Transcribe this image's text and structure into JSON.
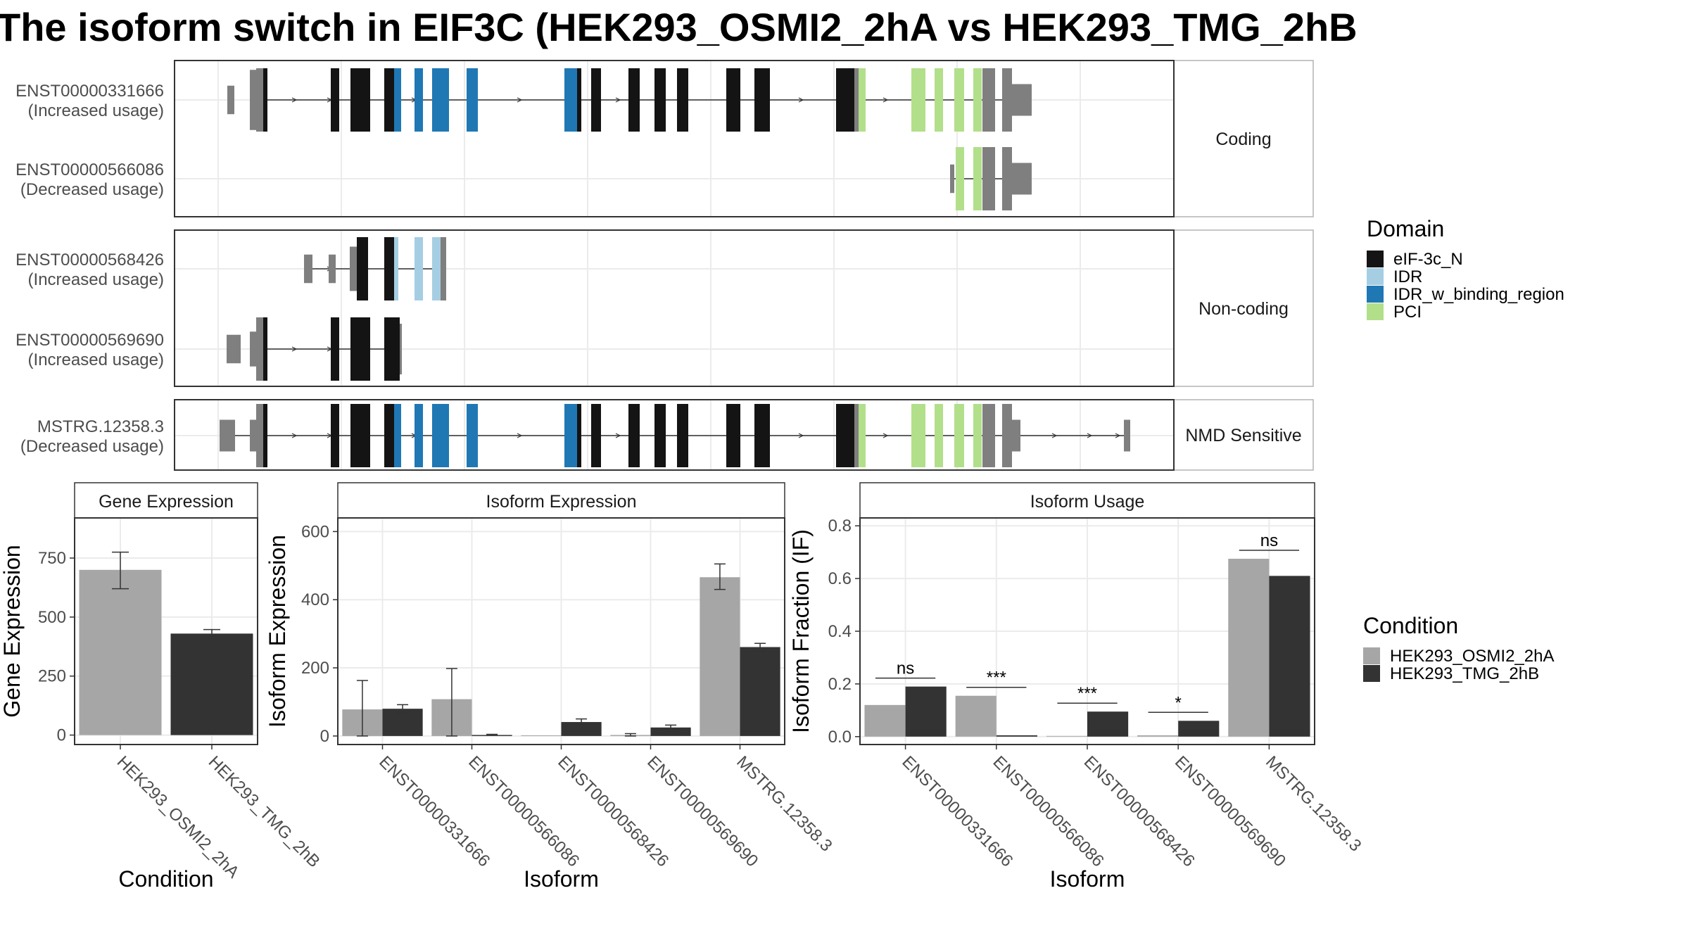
{
  "title": "The isoform switch in EIF3C (HEK293_OSMI2_2hA vs HEK293_TMG_2hB",
  "colors": {
    "eIF-3c_N": "#141414",
    "IDR": "#a6cee3",
    "IDR_w_binding_region": "#1f78b4",
    "PCI": "#b2df8a",
    "exon": "#7f7f7f",
    "cond1": "#a6a6a6",
    "cond2": "#333333"
  },
  "structure": {
    "groups": [
      {
        "label": "Coding",
        "rows": [
          {
            "id": "ENST00000331666",
            "note": "(Increased usage)"
          },
          {
            "id": "ENST00000566086",
            "note": "(Decreased usage)"
          }
        ]
      },
      {
        "label": "Non-coding",
        "rows": [
          {
            "id": "ENST00000568426",
            "note": "(Increased usage)"
          },
          {
            "id": "ENST00000569690",
            "note": "(Increased usage)"
          }
        ]
      },
      {
        "label": "NMD Sensitive",
        "rows": [
          {
            "id": "MSTRG.12358.3",
            "note": "(Decreased usage)"
          }
        ]
      }
    ]
  },
  "legend_domain": {
    "title": "Domain",
    "items": [
      {
        "label": "eIF-3c_N",
        "color": "#141414"
      },
      {
        "label": "IDR",
        "color": "#a6cee3"
      },
      {
        "label": "IDR_w_binding_region",
        "color": "#1f78b4"
      },
      {
        "label": "PCI",
        "color": "#b2df8a"
      }
    ]
  },
  "legend_condition": {
    "title": "Condition",
    "items": [
      {
        "label": "HEK293_OSMI2_2hA",
        "color": "#a6a6a6"
      },
      {
        "label": "HEK293_TMG_2hB",
        "color": "#333333"
      }
    ]
  },
  "chart_data": [
    {
      "type": "bar",
      "title": "Gene Expression",
      "xlabel": "Condition",
      "ylabel": "Gene Expression",
      "categories": [
        "HEK293_OSMI2_2hA",
        "HEK293_TMG_2hB"
      ],
      "values": [
        700,
        430
      ],
      "error_low": [
        620,
        415
      ],
      "error_high": [
        775,
        447
      ],
      "ylim": [
        -40,
        920
      ],
      "yticks": [
        0,
        250,
        500,
        750
      ]
    },
    {
      "type": "bar",
      "title": "Isoform Expression",
      "xlabel": "Isoform",
      "ylabel": "Isoform Expression",
      "categories": [
        "ENST00000331666",
        "ENST00000566086",
        "ENST00000568426",
        "ENST00000569690",
        "MSTRG.12358.3"
      ],
      "series": [
        {
          "name": "HEK293_OSMI2_2hA",
          "values": [
            78,
            108,
            0,
            3,
            466
          ],
          "error_low": [
            0,
            0,
            0,
            0,
            430
          ],
          "error_high": [
            163,
            198,
            0,
            7,
            505
          ]
        },
        {
          "name": "HEK293_TMG_2hB",
          "values": [
            80,
            3,
            41,
            25,
            261
          ],
          "error_low": [
            68,
            2,
            32,
            18,
            250
          ],
          "error_high": [
            92,
            5,
            50,
            32,
            272
          ]
        }
      ],
      "ylim": [
        -25,
        640
      ],
      "yticks": [
        0,
        200,
        400,
        600
      ]
    },
    {
      "type": "bar",
      "title": "Isoform Usage",
      "xlabel": "Isoform",
      "ylabel": "Isoform Fraction (IF)",
      "categories": [
        "ENST00000331666",
        "ENST00000566086",
        "ENST00000568426",
        "ENST00000569690",
        "MSTRG.12358.3"
      ],
      "series": [
        {
          "name": "HEK293_OSMI2_2hA",
          "values": [
            0.12,
            0.155,
            0.0,
            0.005,
            0.675
          ]
        },
        {
          "name": "HEK293_TMG_2hB",
          "values": [
            0.19,
            0.005,
            0.095,
            0.06,
            0.61
          ]
        }
      ],
      "significance": [
        "ns",
        "***",
        "***",
        "*",
        "ns"
      ],
      "ylim": [
        -0.03,
        0.83
      ],
      "yticks": [
        0.0,
        0.2,
        0.4,
        0.6,
        0.8
      ]
    }
  ]
}
